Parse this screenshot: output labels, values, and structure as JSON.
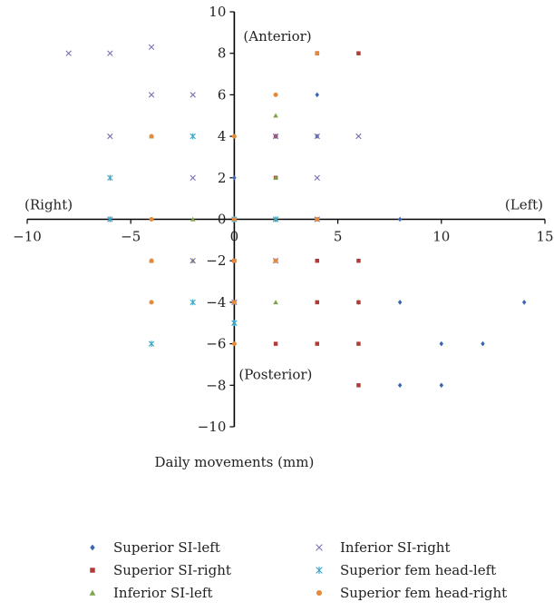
{
  "chart_data": {
    "type": "scatter",
    "xlabel": "Daily movements (mm)",
    "xlim": [
      -10,
      15
    ],
    "ylim": [
      -10,
      10
    ],
    "xticks": [
      -10,
      -5,
      0,
      5,
      10,
      15
    ],
    "yticks": [
      -10,
      -8,
      -6,
      -4,
      -2,
      2,
      4,
      6,
      8,
      10
    ],
    "xtick_labels": [
      "−10",
      "−5",
      "0",
      "5",
      "10",
      "15"
    ],
    "ytick_labels": [
      "−10",
      "−8",
      "−6",
      "−4",
      "−2",
      "2",
      "4",
      "6",
      "8",
      "10"
    ],
    "origin_label": "0",
    "quadrant_labels": {
      "top": "(Anterior)",
      "bottom": "(Posterior)",
      "left": "(Right)",
      "right": "(Left)"
    },
    "grid": false,
    "legend_position": "bottom",
    "series": [
      {
        "name": "Superior SI-left",
        "marker": "diamond",
        "color": "#3a66b0",
        "points": [
          [
            -6,
            0
          ],
          [
            0,
            2
          ],
          [
            2,
            4
          ],
          [
            2,
            0
          ],
          [
            4,
            6
          ],
          [
            4,
            4
          ],
          [
            4,
            0
          ],
          [
            6,
            -4
          ],
          [
            8,
            0
          ],
          [
            8,
            -4
          ],
          [
            8,
            -8
          ],
          [
            10,
            -6
          ],
          [
            10,
            -8
          ],
          [
            12,
            -6
          ],
          [
            14,
            -4
          ]
        ]
      },
      {
        "name": "Superior SI-right",
        "marker": "square",
        "color": "#b23b38",
        "points": [
          [
            4,
            8
          ],
          [
            6,
            8
          ],
          [
            2,
            4
          ],
          [
            2,
            2
          ],
          [
            0,
            -2
          ],
          [
            2,
            -2
          ],
          [
            4,
            -2
          ],
          [
            6,
            -2
          ],
          [
            4,
            -4
          ],
          [
            6,
            -4
          ],
          [
            2,
            -6
          ],
          [
            4,
            -6
          ],
          [
            6,
            -6
          ],
          [
            6,
            -8
          ]
        ]
      },
      {
        "name": "Inferior SI-left",
        "marker": "triangle",
        "color": "#7ea54a",
        "points": [
          [
            2,
            5
          ],
          [
            2,
            2
          ],
          [
            2,
            0
          ],
          [
            -4,
            4
          ],
          [
            -2,
            0
          ],
          [
            4,
            0
          ],
          [
            -4,
            -2
          ],
          [
            -2,
            -2
          ],
          [
            2,
            -4
          ],
          [
            0,
            -5
          ]
        ]
      },
      {
        "name": "Inferior SI-right",
        "marker": "x",
        "color": "#7d6fb1",
        "points": [
          [
            -8,
            8
          ],
          [
            -6,
            8
          ],
          [
            -4,
            8.3
          ],
          [
            -4,
            6
          ],
          [
            -2,
            6
          ],
          [
            -6,
            4
          ],
          [
            -2,
            2
          ],
          [
            2,
            4
          ],
          [
            4,
            4
          ],
          [
            4,
            2
          ],
          [
            6,
            4
          ],
          [
            4,
            0
          ],
          [
            -2,
            -2
          ],
          [
            2,
            -2
          ],
          [
            0,
            -4
          ]
        ]
      },
      {
        "name": "Superior fem head-left",
        "marker": "asterisk",
        "color": "#3aa6c7",
        "points": [
          [
            -6,
            2
          ],
          [
            -2,
            4
          ],
          [
            -6,
            0
          ],
          [
            0,
            0
          ],
          [
            2,
            0
          ],
          [
            -4,
            -6
          ],
          [
            -2,
            -4
          ],
          [
            0,
            -5
          ]
        ]
      },
      {
        "name": "Superior fem head-right",
        "marker": "circle",
        "color": "#e48a3a",
        "points": [
          [
            4,
            8
          ],
          [
            2,
            6
          ],
          [
            0,
            4
          ],
          [
            -4,
            4
          ],
          [
            0,
            0
          ],
          [
            -4,
            0
          ],
          [
            4,
            0
          ],
          [
            -4,
            -2
          ],
          [
            0,
            -2
          ],
          [
            2,
            -2
          ],
          [
            -4,
            -4
          ],
          [
            0,
            -4
          ],
          [
            0,
            -6
          ]
        ]
      }
    ]
  }
}
